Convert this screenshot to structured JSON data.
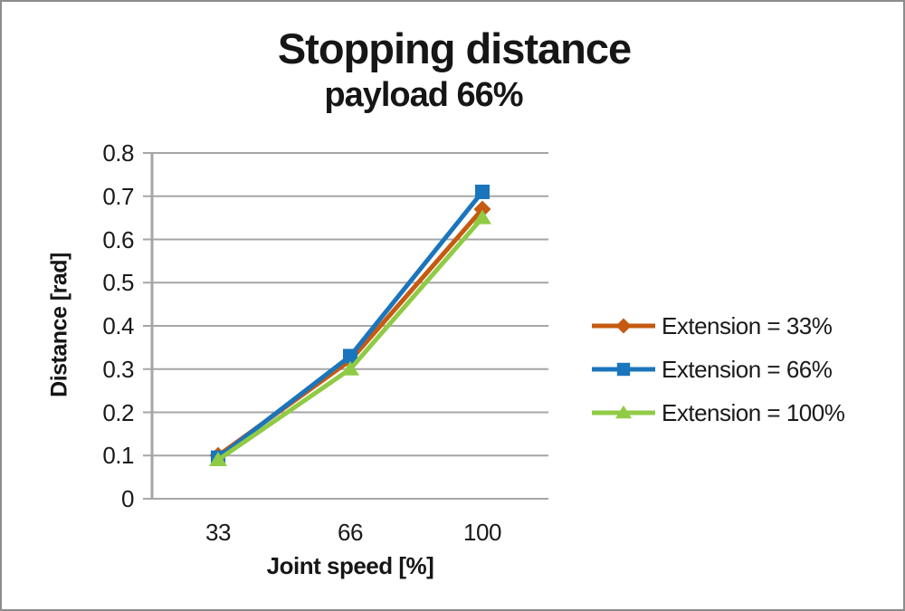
{
  "title": "Stopping distance",
  "subtitle": "payload 66%",
  "chart_data": {
    "type": "line",
    "title": "Stopping distance",
    "subtitle": "payload 66%",
    "xlabel": "Joint speed [%]",
    "ylabel": "Distance [rad]",
    "categories": [
      "33",
      "66",
      "100"
    ],
    "ylim": [
      0,
      0.8
    ],
    "yticks": [
      "0",
      "0.1",
      "0.2",
      "0.3",
      "0.4",
      "0.5",
      "0.6",
      "0.7",
      "0.8"
    ],
    "grid": "horizontal",
    "legend_position": "right",
    "series": [
      {
        "name": "Extension = 33%",
        "marker": "diamond",
        "color": "#C55A11",
        "values": [
          0.1,
          0.32,
          0.67
        ]
      },
      {
        "name": "Extension = 66%",
        "marker": "square",
        "color": "#1B75BC",
        "values": [
          0.095,
          0.33,
          0.71
        ]
      },
      {
        "name": "Extension = 100%",
        "marker": "triangle",
        "color": "#8FCB45",
        "values": [
          0.09,
          0.3,
          0.65
        ]
      }
    ],
    "gridline_color": "#A6A6A6",
    "axis_color": "#A6A6A6",
    "text_color": "#1a1a1a",
    "frame_border_color": "#8c8c8c",
    "background_color": "#ffffff"
  }
}
